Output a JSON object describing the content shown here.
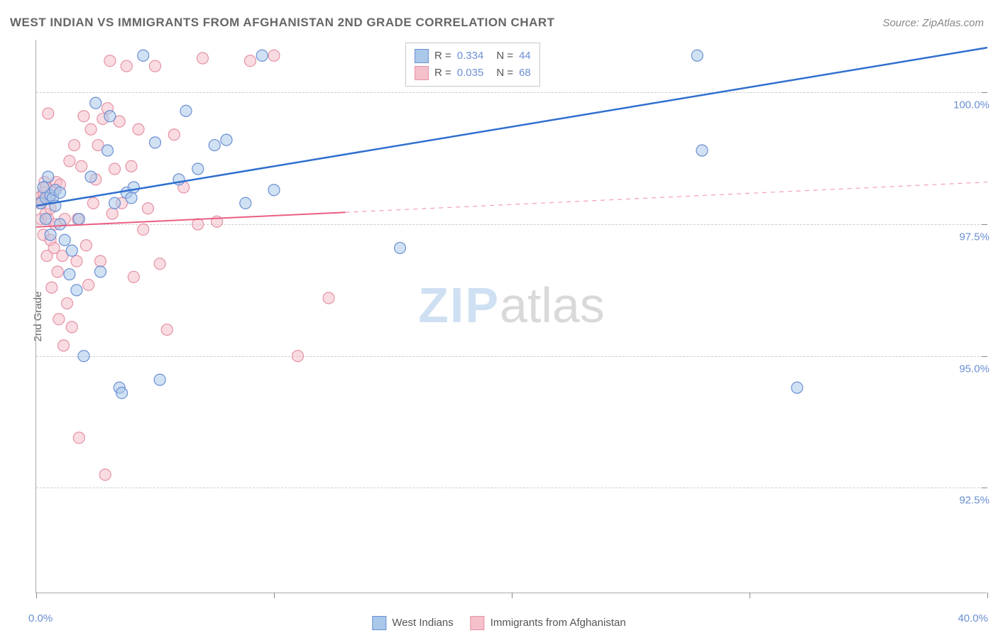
{
  "title": "WEST INDIAN VS IMMIGRANTS FROM AFGHANISTAN 2ND GRADE CORRELATION CHART",
  "source": "Source: ZipAtlas.com",
  "ylabel": "2nd Grade",
  "watermark_zip": "ZIP",
  "watermark_atlas": "atlas",
  "chart": {
    "type": "scatter",
    "xlim": [
      0,
      40
    ],
    "ylim": [
      90.5,
      101.0
    ],
    "yticks": [
      92.5,
      95.0,
      97.5,
      100.0
    ],
    "ytick_labels": [
      "92.5%",
      "95.0%",
      "97.5%",
      "100.0%"
    ],
    "xticks": [
      0,
      10,
      20,
      30,
      40
    ],
    "xtick_labels_shown": {
      "min": "0.0%",
      "max": "40.0%"
    },
    "background_color": "#ffffff",
    "grid_color": "#cccccc",
    "axis_color": "#aaaaaa",
    "label_color": "#666666",
    "tick_label_color": "#6b8fd4",
    "marker_radius": 8,
    "marker_opacity": 0.55,
    "series": [
      {
        "name": "West Indians",
        "key": "west_indians",
        "fill": "#a9c8ea",
        "stroke": "#6b8fd4",
        "line_color": "#2f6fd0",
        "line_width": 2.5,
        "R": "0.334",
        "N": "44",
        "trend": {
          "x1": 0,
          "y1": 97.85,
          "x2": 40,
          "y2": 100.85,
          "dash_after_x": 40
        },
        "points": [
          [
            0.2,
            97.9
          ],
          [
            0.3,
            98.2
          ],
          [
            0.4,
            98.0
          ],
          [
            0.4,
            97.6
          ],
          [
            0.5,
            98.4
          ],
          [
            0.6,
            98.05
          ],
          [
            0.6,
            97.3
          ],
          [
            0.7,
            98.0
          ],
          [
            0.8,
            98.15
          ],
          [
            0.8,
            97.85
          ],
          [
            1.0,
            98.1
          ],
          [
            1.0,
            97.5
          ],
          [
            1.2,
            97.2
          ],
          [
            1.4,
            96.55
          ],
          [
            1.5,
            97.0
          ],
          [
            1.7,
            96.25
          ],
          [
            1.8,
            97.6
          ],
          [
            2.0,
            95.0
          ],
          [
            2.3,
            98.4
          ],
          [
            2.5,
            99.8
          ],
          [
            2.7,
            96.6
          ],
          [
            3.0,
            98.9
          ],
          [
            3.1,
            99.55
          ],
          [
            3.3,
            97.9
          ],
          [
            3.5,
            94.4
          ],
          [
            3.6,
            94.3
          ],
          [
            3.8,
            98.1
          ],
          [
            4.0,
            98.0
          ],
          [
            4.1,
            98.2
          ],
          [
            4.5,
            100.7
          ],
          [
            5.0,
            99.05
          ],
          [
            5.2,
            94.55
          ],
          [
            6.0,
            98.35
          ],
          [
            6.3,
            99.65
          ],
          [
            6.8,
            98.55
          ],
          [
            7.5,
            99.0
          ],
          [
            8.0,
            99.1
          ],
          [
            8.8,
            97.9
          ],
          [
            9.5,
            100.7
          ],
          [
            10.0,
            98.15
          ],
          [
            15.3,
            97.05
          ],
          [
            27.8,
            100.7
          ],
          [
            28.0,
            98.9
          ],
          [
            32.0,
            94.4
          ]
        ]
      },
      {
        "name": "Immigrants from Afghanistan",
        "key": "immigrants_afghanistan",
        "fill": "#f4c0cb",
        "stroke": "#e592a4",
        "line_color": "#ea5e83",
        "line_width": 2,
        "R": "0.035",
        "N": "68",
        "trend": {
          "x1": 0,
          "y1": 97.45,
          "x2": 40,
          "y2": 98.3,
          "dash_after_x": 13
        },
        "points": [
          [
            0.1,
            98.0
          ],
          [
            0.15,
            97.9
          ],
          [
            0.2,
            97.6
          ],
          [
            0.25,
            97.95
          ],
          [
            0.3,
            98.1
          ],
          [
            0.3,
            97.3
          ],
          [
            0.35,
            98.3
          ],
          [
            0.4,
            97.7
          ],
          [
            0.4,
            98.2
          ],
          [
            0.45,
            96.9
          ],
          [
            0.5,
            97.6
          ],
          [
            0.5,
            99.6
          ],
          [
            0.55,
            98.0
          ],
          [
            0.6,
            97.2
          ],
          [
            0.6,
            97.8
          ],
          [
            0.65,
            96.3
          ],
          [
            0.7,
            98.1
          ],
          [
            0.75,
            97.05
          ],
          [
            0.8,
            97.5
          ],
          [
            0.85,
            98.3
          ],
          [
            0.9,
            96.6
          ],
          [
            0.95,
            95.7
          ],
          [
            1.0,
            98.25
          ],
          [
            1.1,
            96.9
          ],
          [
            1.15,
            95.2
          ],
          [
            1.2,
            97.6
          ],
          [
            1.3,
            96.0
          ],
          [
            1.4,
            98.7
          ],
          [
            1.5,
            95.55
          ],
          [
            1.6,
            99.0
          ],
          [
            1.7,
            96.8
          ],
          [
            1.75,
            97.6
          ],
          [
            1.8,
            93.45
          ],
          [
            1.9,
            98.6
          ],
          [
            2.0,
            99.55
          ],
          [
            2.1,
            97.1
          ],
          [
            2.2,
            96.35
          ],
          [
            2.3,
            99.3
          ],
          [
            2.4,
            97.9
          ],
          [
            2.5,
            98.35
          ],
          [
            2.6,
            99.0
          ],
          [
            2.7,
            96.8
          ],
          [
            2.8,
            99.5
          ],
          [
            2.9,
            92.75
          ],
          [
            3.0,
            99.7
          ],
          [
            3.1,
            100.6
          ],
          [
            3.2,
            97.7
          ],
          [
            3.3,
            98.55
          ],
          [
            3.5,
            99.45
          ],
          [
            3.6,
            97.9
          ],
          [
            3.8,
            100.5
          ],
          [
            4.0,
            98.6
          ],
          [
            4.1,
            96.5
          ],
          [
            4.3,
            99.3
          ],
          [
            4.5,
            97.4
          ],
          [
            4.7,
            97.8
          ],
          [
            5.0,
            100.5
          ],
          [
            5.2,
            96.75
          ],
          [
            5.5,
            95.5
          ],
          [
            5.8,
            99.2
          ],
          [
            6.2,
            98.2
          ],
          [
            6.8,
            97.5
          ],
          [
            7.0,
            100.65
          ],
          [
            7.6,
            97.55
          ],
          [
            9.0,
            100.6
          ],
          [
            10.0,
            100.7
          ],
          [
            11.0,
            95.0
          ],
          [
            12.3,
            96.1
          ]
        ]
      }
    ],
    "legend_bottom": [
      "West Indians",
      "Immigrants from Afghanistan"
    ]
  }
}
